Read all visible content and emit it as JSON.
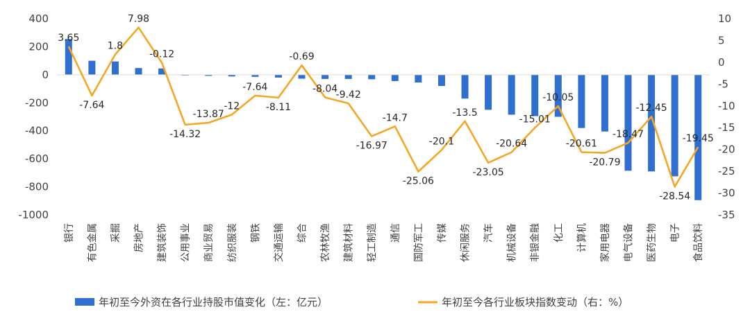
{
  "chart_data": {
    "type": "bar",
    "categories": [
      "银行",
      "有色金属",
      "采掘",
      "房地产",
      "建筑装饰",
      "公用事业",
      "商业贸易",
      "纺织服装",
      "钢铁",
      "交通运输",
      "综合",
      "农林牧渔",
      "建筑材料",
      "轻工制造",
      "通信",
      "国防军工",
      "传媒",
      "休闲服务",
      "汽车",
      "机械设备",
      "非银金融",
      "化工",
      "计算机",
      "家用电器",
      "电气设备",
      "医药生物",
      "电子",
      "食品饮料"
    ],
    "series": [
      {
        "name": "年初至今外资在各行业持股市值变化（左：亿元）",
        "type": "bar",
        "axis": "left",
        "color": "#2e6fd0",
        "values": [
          255,
          100,
          95,
          48,
          45,
          -5,
          -8,
          -12,
          -15,
          -20,
          -28,
          -30,
          -30,
          -32,
          -45,
          -55,
          -80,
          -170,
          -250,
          -285,
          -295,
          -300,
          -380,
          -405,
          -685,
          -690,
          -725,
          -895
        ]
      },
      {
        "name": "年初至今各行业板块指数变动（右：%）",
        "type": "line",
        "axis": "right",
        "color": "#f5a623",
        "values": [
          3.65,
          -7.64,
          1.8,
          7.98,
          -0.12,
          -14.32,
          -13.87,
          -12,
          -7.64,
          -8.11,
          -0.69,
          -8.04,
          -9.42,
          -16.97,
          -14.7,
          -25.06,
          -20.1,
          -13.5,
          -23.05,
          -20.64,
          -15.01,
          -10.05,
          -20.61,
          -20.79,
          -18.47,
          -12.45,
          -28.54,
          -19.45
        ],
        "labels": [
          "3.65",
          "-7.64",
          "1.8",
          "7.98",
          "-0.12",
          "-14.32",
          "-13.87",
          "-12",
          "-7.64",
          "-8.11",
          "-0.69",
          "-8.04",
          "-9.42",
          "-16.97",
          "-14.7",
          "-25.06",
          "-20.1",
          "-13.5",
          "-23.05",
          "-20.64",
          "-15.01",
          "-10.05",
          "-20.61",
          "-20.79",
          "-18.47",
          "-12.45",
          "-28.54",
          "-19.45"
        ]
      }
    ],
    "y_left": {
      "lim": [
        -1000,
        400
      ],
      "ticks": [
        400,
        200,
        0,
        -200,
        -400,
        -600,
        -800,
        -1000
      ],
      "tick_labels": [
        "400",
        "200",
        "0",
        "-200",
        "-400",
        "-600",
        "-800",
        "-1000"
      ]
    },
    "y_right": {
      "lim": [
        -35,
        10
      ],
      "ticks": [
        10,
        5,
        0,
        -5,
        -10,
        -15,
        -20,
        -25,
        -30,
        -35
      ],
      "tick_labels": [
        "10",
        "5",
        "0",
        "-5",
        "-10",
        "-15",
        "-20",
        "-25",
        "-30",
        "-35"
      ]
    },
    "grid": false,
    "legend": "bottom",
    "legend_entries": [
      "年初至今外资在各行业持股市值变化（左：亿元）",
      "年初至今各行业板块指数变动（右：%）"
    ]
  }
}
